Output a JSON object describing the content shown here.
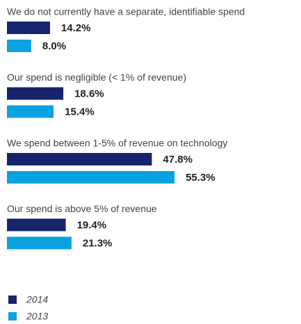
{
  "chart_data": {
    "type": "bar",
    "orientation": "horizontal",
    "categories": [
      "We do not currently have a separate, identifiable spend",
      "Our spend is negligible (< 1% of revenue)",
      "We spend between 1-5% of revenue on technology",
      "Our spend  is above 5% of revenue"
    ],
    "series": [
      {
        "name": "2014",
        "color": "#15246b",
        "values": [
          14.2,
          18.6,
          47.8,
          19.4
        ],
        "value_labels": [
          "14.2%",
          "18.6%",
          "47.8%",
          "19.4%"
        ]
      },
      {
        "name": "2013",
        "color": "#0aa2e0",
        "values": [
          8.0,
          15.4,
          55.3,
          21.3
        ],
        "value_labels": [
          "8.0%",
          "15.4%",
          "55.3%",
          "21.3%"
        ]
      }
    ],
    "legend": "bottom-left"
  }
}
